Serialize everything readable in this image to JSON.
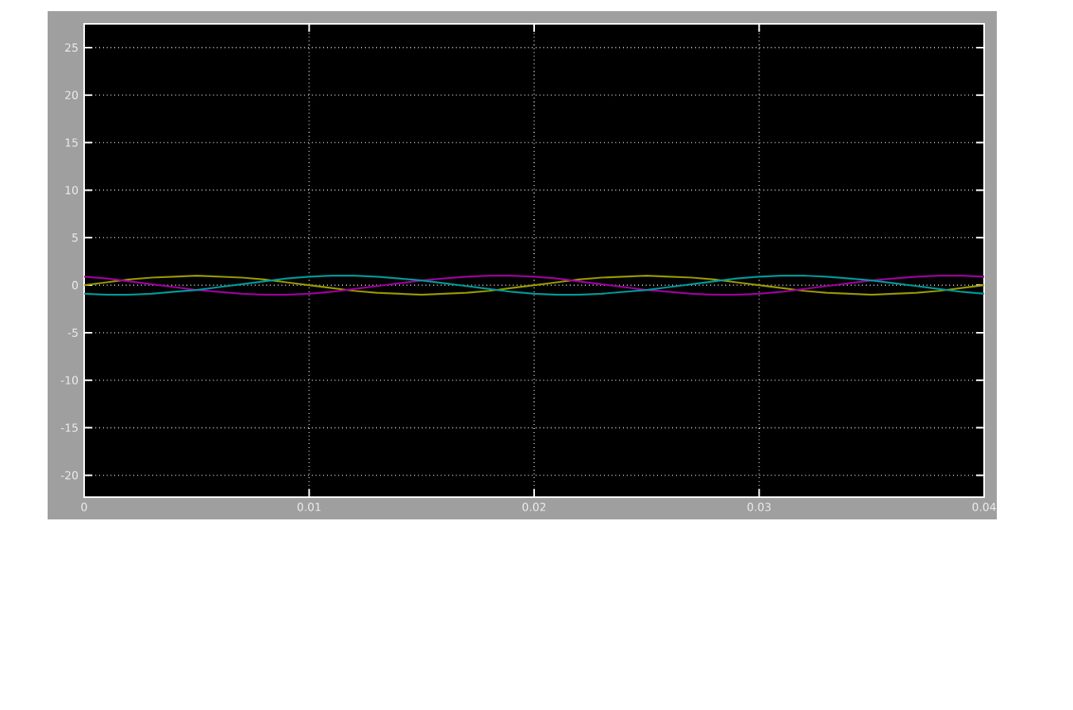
{
  "chart_data": {
    "type": "line",
    "grid": true,
    "marker": "none",
    "line_style": "solid",
    "x": [
      0,
      0.001,
      0.002,
      0.003,
      0.004,
      0.005,
      0.006,
      0.007,
      0.008,
      0.009,
      0.01,
      0.011,
      0.012,
      0.013,
      0.014,
      0.015,
      0.016,
      0.017,
      0.018,
      0.019,
      0.02,
      0.021,
      0.022,
      0.023,
      0.024,
      0.025,
      0.026,
      0.027,
      0.028,
      0.029,
      0.03,
      0.031,
      0.032,
      0.033,
      0.034,
      0.035,
      0.036,
      0.037,
      0.038,
      0.039,
      0.04
    ],
    "series": [
      {
        "color": "#9a9a00",
        "values": [
          0,
          0.3,
          0.6,
          0.8,
          0.9,
          1,
          0.9,
          0.8,
          0.6,
          0.3,
          0,
          -0.3,
          -0.6,
          -0.8,
          -0.9,
          -1,
          -0.9,
          -0.8,
          -0.6,
          -0.3,
          0,
          0.3,
          0.6,
          0.8,
          0.9,
          1,
          0.9,
          0.8,
          0.6,
          0.3,
          0,
          -0.3,
          -0.6,
          -0.8,
          -0.9,
          -1,
          -0.9,
          -0.8,
          -0.6,
          -0.3,
          0
        ]
      },
      {
        "color": "#a000a0",
        "values": [
          0.9,
          0.7,
          0.4,
          0.1,
          -0.2,
          -0.5,
          -0.7,
          -0.9,
          -1,
          -1,
          -0.9,
          -0.7,
          -0.4,
          -0.1,
          0.2,
          0.5,
          0.7,
          0.9,
          1,
          1,
          0.9,
          0.7,
          0.4,
          0.1,
          -0.2,
          -0.5,
          -0.7,
          -0.9,
          -1,
          -1,
          -0.9,
          -0.7,
          -0.4,
          -0.1,
          0.2,
          0.5,
          0.7,
          0.9,
          1,
          1,
          0.9
        ]
      },
      {
        "color": "#009a9a",
        "values": [
          -0.9,
          -1,
          -1,
          -0.9,
          -0.7,
          -0.5,
          -0.2,
          0.1,
          0.4,
          0.7,
          0.9,
          1,
          1,
          0.9,
          0.7,
          0.5,
          0.2,
          -0.1,
          -0.4,
          -0.7,
          -0.9,
          -1,
          -1,
          -0.9,
          -0.7,
          -0.5,
          -0.2,
          0.1,
          0.4,
          0.7,
          0.9,
          1,
          1,
          0.9,
          0.7,
          0.5,
          0.2,
          -0.1,
          -0.4,
          -0.7,
          -0.9
        ]
      }
    ],
    "xlim": [
      0,
      0.04
    ],
    "xticks": [
      0,
      0.01,
      0.02,
      0.03,
      0.04
    ],
    "ylim": [
      -22.3,
      27.5
    ],
    "yticks": [
      -20,
      -15,
      -10,
      -5,
      0,
      5,
      10,
      15,
      20,
      25
    ]
  }
}
